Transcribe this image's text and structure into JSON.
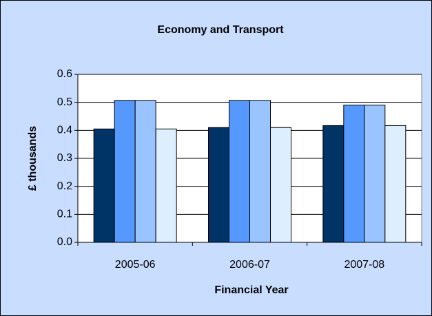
{
  "chart_data": {
    "type": "bar",
    "title": "Economy and Transport",
    "xlabel": "Financial Year",
    "ylabel": "£ thousands",
    "categories": [
      "2005-06",
      "2006-07",
      "2007-08"
    ],
    "series": [
      {
        "color": "#003366",
        "values": [
          0.405,
          0.41,
          0.417
        ]
      },
      {
        "color": "#5599ff",
        "values": [
          0.507,
          0.507,
          0.49
        ]
      },
      {
        "color": "#99c4ff",
        "values": [
          0.507,
          0.507,
          0.49
        ]
      },
      {
        "color": "#ddeeff",
        "values": [
          0.405,
          0.41,
          0.417
        ]
      }
    ],
    "ylim": [
      0,
      0.6
    ],
    "yticks": [
      {
        "value": 0,
        "label": "0.0"
      },
      0.1,
      0.2,
      0.3,
      0.4,
      0.5,
      0.6
    ],
    "grid": true
  }
}
